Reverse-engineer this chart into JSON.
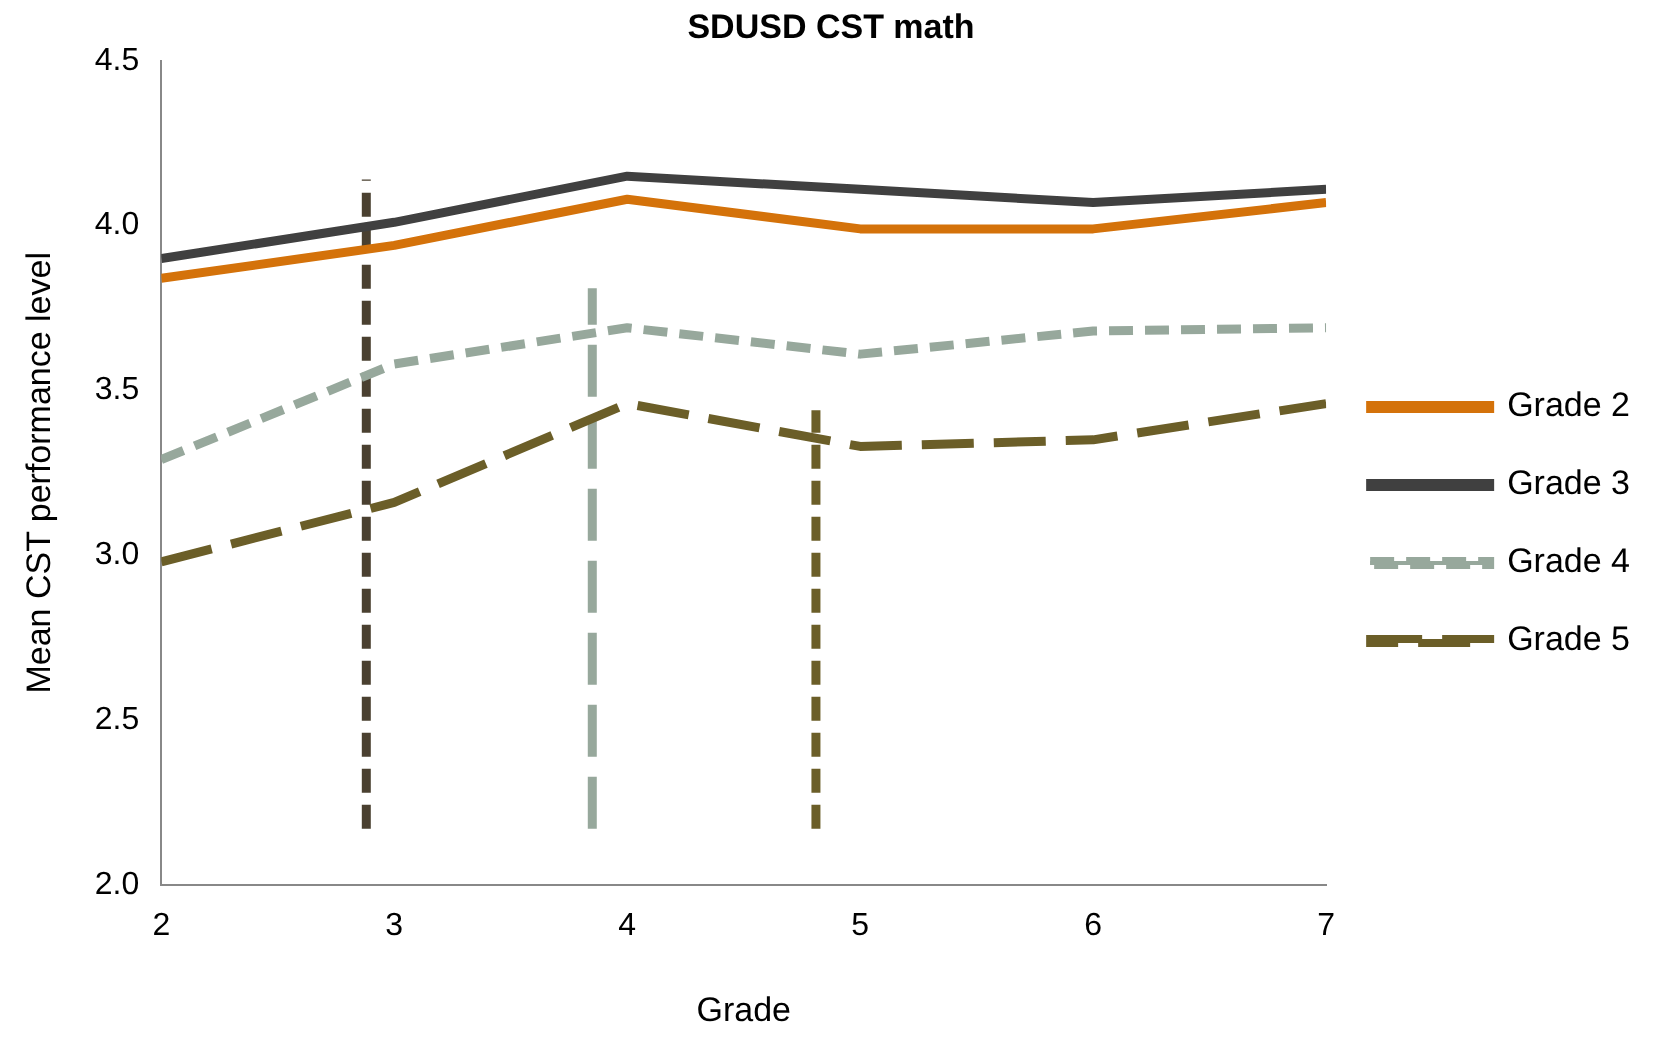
{
  "chart_data": {
    "type": "line",
    "title": "SDUSD CST math",
    "xlabel": "Grade",
    "ylabel": "Mean CST performance level",
    "x": [
      2,
      3,
      4,
      5,
      6,
      7
    ],
    "xlim": [
      2,
      7
    ],
    "xticks": [
      2,
      3,
      4,
      5,
      6,
      7
    ],
    "ylim": [
      2,
      4.5
    ],
    "yticks": [
      {
        "value": 2,
        "label": "2.0"
      },
      2.5,
      {
        "value": 3,
        "label": "3.0"
      },
      3.5,
      {
        "value": 4,
        "label": "4.0"
      },
      4.5
    ],
    "legend": "right",
    "marker": "none",
    "line_style": "solid",
    "series": [
      {
        "name": "Grade 2",
        "color": "#d4720a",
        "values": [
          3.84,
          3.94,
          4.08,
          3.99,
          3.99,
          4.07
        ]
      },
      {
        "name": "Grade 3",
        "color": "#404040",
        "values": [
          3.9,
          4.01,
          4.15,
          4.11,
          4.07,
          4.11
        ]
      },
      {
        "name": "Grade 4",
        "color": "#97a89c",
        "line_style": "dashed",
        "values": [
          3.29,
          3.58,
          3.69,
          3.61,
          3.68,
          3.69
        ]
      },
      {
        "name": "Grade 5",
        "color": "#6b5e28",
        "line_style": "dashed",
        "values": [
          2.98,
          3.16,
          3.46,
          3.33,
          3.35,
          3.46
        ]
      },
      {
        "color": "#4a4030",
        "line_style": "dashed",
        "x": [
          2.88,
          2.88
        ],
        "values": [
          2.17,
          4.14
        ]
      },
      {
        "color": "#97a89c",
        "line_style": "dashed",
        "x": [
          3.85,
          3.85
        ],
        "values": [
          2.17,
          3.81
        ]
      },
      {
        "color": "#6b5e28",
        "line_style": "dashed",
        "x": [
          4.81,
          4.81
        ],
        "values": [
          2.17,
          3.44
        ]
      }
    ]
  }
}
